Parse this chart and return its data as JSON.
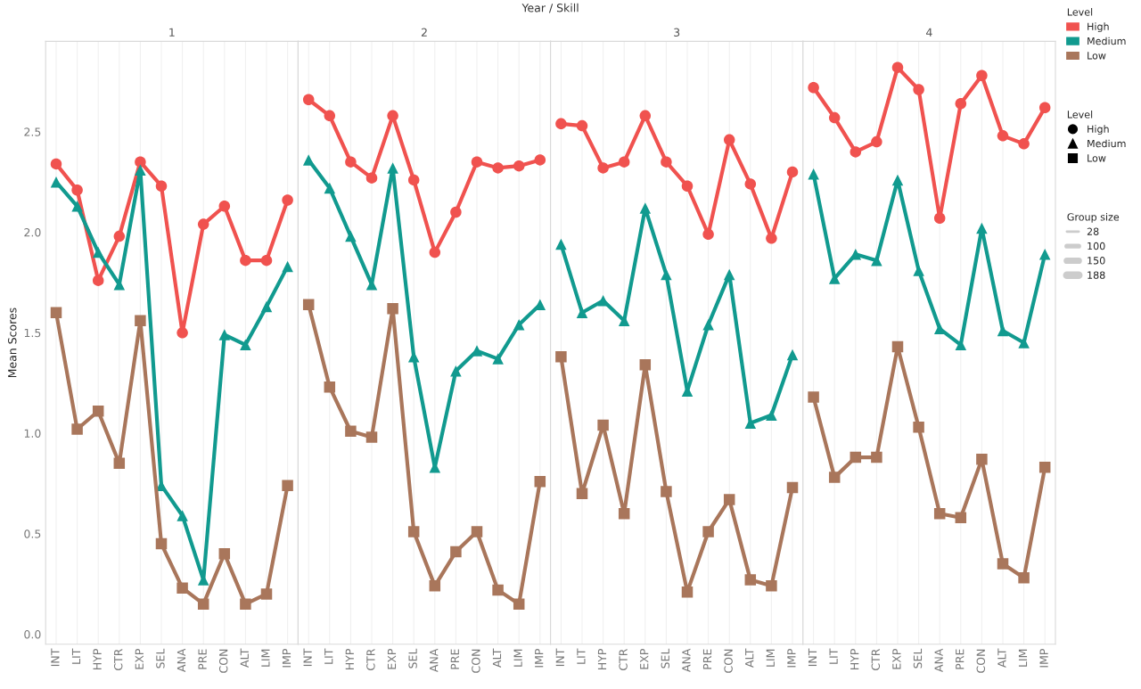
{
  "chart_data": [
    {
      "type": "line",
      "title": "1",
      "ylabel": "Mean Scores",
      "categories": [
        "INT",
        "LIT",
        "HYP",
        "CTR",
        "EXP",
        "SEL",
        "ANA",
        "PRE",
        "CON",
        "ALT",
        "LIM",
        "IMP"
      ],
      "ylim": [
        -0.05,
        2.95
      ],
      "yticks": [
        {
          "value": 0,
          "label": "0.0"
        },
        {
          "value": 0.5,
          "label": "0.5"
        },
        {
          "value": 1,
          "label": "1.0"
        },
        {
          "value": 1.5,
          "label": "1.5"
        },
        {
          "value": 2,
          "label": "2.0"
        },
        {
          "value": 2.5,
          "label": "2.5"
        }
      ],
      "grid": "x",
      "series": [
        {
          "color": "#f0524f",
          "marker": "circle",
          "values": [
            2.34,
            2.21,
            1.76,
            1.98,
            2.35,
            2.23,
            1.5,
            2.04,
            2.13,
            1.86,
            1.86,
            2.16
          ]
        },
        {
          "color": "#119a8f",
          "marker": "triangle",
          "values": [
            2.25,
            2.13,
            1.9,
            1.74,
            2.31,
            0.74,
            0.59,
            0.27,
            1.49,
            1.44,
            1.63,
            1.83
          ]
        },
        {
          "color": "#a9765b",
          "marker": "square",
          "values": [
            1.6,
            1.02,
            1.11,
            0.85,
            1.56,
            0.45,
            0.23,
            0.15,
            0.4,
            0.15,
            0.2,
            0.74
          ]
        }
      ]
    },
    {
      "type": "line",
      "title": "2",
      "annotations": [
        "Year / Skill"
      ],
      "categories": [
        "INT",
        "LIT",
        "HYP",
        "CTR",
        "EXP",
        "SEL",
        "ANA",
        "PRE",
        "CON",
        "ALT",
        "LIM",
        "IMP"
      ],
      "ylim": [
        -0.05,
        2.95
      ],
      "tick_labels": "x",
      "grid": "x",
      "series": [
        {
          "color": "#f0524f",
          "marker": "circle",
          "values": [
            2.66,
            2.58,
            2.35,
            2.27,
            2.58,
            2.26,
            1.9,
            2.1,
            2.35,
            2.32,
            2.33,
            2.36
          ]
        },
        {
          "color": "#119a8f",
          "marker": "triangle",
          "values": [
            2.36,
            2.22,
            1.98,
            1.74,
            2.32,
            1.38,
            0.83,
            1.31,
            1.41,
            1.37,
            1.54,
            1.64
          ]
        },
        {
          "color": "#a9765b",
          "marker": "square",
          "values": [
            1.64,
            1.23,
            1.01,
            0.98,
            1.62,
            0.51,
            0.24,
            0.41,
            0.51,
            0.22,
            0.15,
            0.76
          ]
        }
      ]
    },
    {
      "type": "line",
      "title": "3",
      "categories": [
        "INT",
        "LIT",
        "HYP",
        "CTR",
        "EXP",
        "SEL",
        "ANA",
        "PRE",
        "CON",
        "ALT",
        "LIM",
        "IMP"
      ],
      "ylim": [
        -0.05,
        2.95
      ],
      "tick_labels": "x",
      "grid": "x",
      "series": [
        {
          "color": "#f0524f",
          "marker": "circle",
          "values": [
            2.54,
            2.53,
            2.32,
            2.35,
            2.58,
            2.35,
            2.23,
            1.99,
            2.46,
            2.24,
            1.97,
            2.3
          ]
        },
        {
          "color": "#119a8f",
          "marker": "triangle",
          "values": [
            1.94,
            1.6,
            1.66,
            1.56,
            2.12,
            1.79,
            1.21,
            1.54,
            1.79,
            1.05,
            1.09,
            1.39
          ]
        },
        {
          "color": "#a9765b",
          "marker": "square",
          "values": [
            1.38,
            0.7,
            1.04,
            0.6,
            1.34,
            0.71,
            0.21,
            0.51,
            0.67,
            0.27,
            0.24,
            0.73
          ]
        }
      ]
    },
    {
      "type": "line",
      "title": "4",
      "legend_title": "Level",
      "categories": [
        "INT",
        "LIT",
        "HYP",
        "CTR",
        "EXP",
        "SEL",
        "ANA",
        "PRE",
        "CON",
        "ALT",
        "LIM",
        "IMP"
      ],
      "ylim": [
        -0.05,
        2.95
      ],
      "tick_labels": "x",
      "grid": "x",
      "legend": "right",
      "annotations": [
        "Group size",
        "28",
        "100",
        "150",
        "188"
      ],
      "series": [
        {
          "name": "High",
          "color": "#f0524f",
          "marker": "circle",
          "values": [
            2.72,
            2.57,
            2.4,
            2.45,
            2.82,
            2.71,
            2.07,
            2.64,
            2.78,
            2.48,
            2.44,
            2.62
          ]
        },
        {
          "name": "Medium",
          "color": "#119a8f",
          "marker": "triangle",
          "values": [
            2.29,
            1.77,
            1.89,
            1.86,
            2.26,
            1.81,
            1.52,
            1.44,
            2.02,
            1.51,
            1.45,
            1.89
          ]
        },
        {
          "name": "Low",
          "color": "#a9765b",
          "marker": "square",
          "values": [
            1.18,
            0.78,
            0.88,
            0.88,
            1.43,
            1.03,
            0.6,
            0.58,
            0.87,
            0.35,
            0.28,
            0.83
          ]
        }
      ]
    }
  ]
}
